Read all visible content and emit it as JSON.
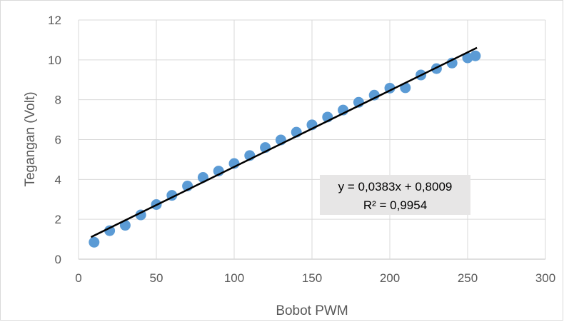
{
  "chart_data": {
    "type": "scatter",
    "xlabel": "Bobot PWM",
    "ylabel": "Tegangan (Volt)",
    "xlim": [
      0,
      300
    ],
    "ylim": [
      0,
      12
    ],
    "xticks": [
      "0",
      "50",
      "100",
      "150",
      "200",
      "250",
      "300"
    ],
    "yticks": [
      "0",
      "2",
      "4",
      "6",
      "8",
      "10",
      "12"
    ],
    "grid": true,
    "legend": "none",
    "series": [
      {
        "points": [
          {
            "x": 10,
            "y": 0.85
          },
          {
            "x": 20,
            "y": 1.43
          },
          {
            "x": 30,
            "y": 1.7
          },
          {
            "x": 40,
            "y": 2.22
          },
          {
            "x": 50,
            "y": 2.74
          },
          {
            "x": 60,
            "y": 3.2
          },
          {
            "x": 70,
            "y": 3.67
          },
          {
            "x": 80,
            "y": 4.1
          },
          {
            "x": 90,
            "y": 4.42
          },
          {
            "x": 100,
            "y": 4.8
          },
          {
            "x": 110,
            "y": 5.2
          },
          {
            "x": 120,
            "y": 5.6
          },
          {
            "x": 130,
            "y": 5.98
          },
          {
            "x": 140,
            "y": 6.37
          },
          {
            "x": 150,
            "y": 6.74
          },
          {
            "x": 160,
            "y": 7.13
          },
          {
            "x": 170,
            "y": 7.48
          },
          {
            "x": 180,
            "y": 7.87
          },
          {
            "x": 190,
            "y": 8.23
          },
          {
            "x": 200,
            "y": 8.58
          },
          {
            "x": 210,
            "y": 8.6
          },
          {
            "x": 220,
            "y": 9.24
          },
          {
            "x": 230,
            "y": 9.56
          },
          {
            "x": 240,
            "y": 9.84
          },
          {
            "x": 250,
            "y": 10.1
          },
          {
            "x": 255,
            "y": 10.2
          }
        ],
        "color": "#5b9bd5"
      }
    ],
    "trendline": {
      "type": "linear",
      "slope": 0.0383,
      "intercept": 0.8009,
      "x_range": [
        8,
        256
      ],
      "color": "#000000",
      "equation": "y = 0,0383x + 0,8009",
      "r_squared": "R² = 0,9954"
    }
  }
}
